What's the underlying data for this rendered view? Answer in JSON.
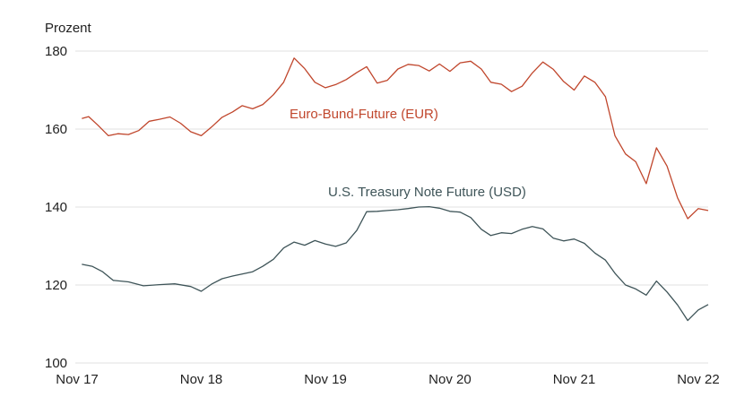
{
  "chart_data": {
    "type": "line",
    "ylabel": "Prozent",
    "ylim": [
      100,
      180
    ],
    "yticks": [
      100,
      120,
      140,
      160,
      180
    ],
    "xlim": [
      "2017-11-01",
      "2022-11-30"
    ],
    "xticks": [
      {
        "date": "2017-11-01",
        "label": "Nov 17"
      },
      {
        "date": "2018-11-01",
        "label": "Nov 18"
      },
      {
        "date": "2019-11-01",
        "label": "Nov 19"
      },
      {
        "date": "2020-11-01",
        "label": "Nov 20"
      },
      {
        "date": "2021-11-01",
        "label": "Nov 21"
      },
      {
        "date": "2022-11-01",
        "label": "Nov 22"
      }
    ],
    "grid": "horizontal",
    "series": [
      {
        "name": "Euro-Bund-Future (EUR)",
        "color": "#c0462c",
        "points": [
          [
            "2017-11-15",
            162.7
          ],
          [
            "2017-12-05",
            163.2
          ],
          [
            "2018-01-01",
            161.0
          ],
          [
            "2018-02-01",
            158.3
          ],
          [
            "2018-03-01",
            158.8
          ],
          [
            "2018-04-01",
            158.6
          ],
          [
            "2018-05-01",
            159.6
          ],
          [
            "2018-06-01",
            162.0
          ],
          [
            "2018-07-01",
            162.5
          ],
          [
            "2018-08-01",
            163.1
          ],
          [
            "2018-09-01",
            161.5
          ],
          [
            "2018-10-01",
            159.3
          ],
          [
            "2018-11-01",
            158.3
          ],
          [
            "2018-12-01",
            160.5
          ],
          [
            "2019-01-01",
            163.0
          ],
          [
            "2019-02-01",
            164.4
          ],
          [
            "2019-03-01",
            166.0
          ],
          [
            "2019-04-01",
            165.2
          ],
          [
            "2019-05-01",
            166.3
          ],
          [
            "2019-06-01",
            168.8
          ],
          [
            "2019-07-01",
            172.0
          ],
          [
            "2019-08-01",
            178.2
          ],
          [
            "2019-09-01",
            175.5
          ],
          [
            "2019-10-01",
            172.0
          ],
          [
            "2019-11-01",
            170.6
          ],
          [
            "2019-12-01",
            171.4
          ],
          [
            "2020-01-01",
            172.7
          ],
          [
            "2020-02-01",
            174.5
          ],
          [
            "2020-03-01",
            176.0
          ],
          [
            "2020-04-01",
            171.8
          ],
          [
            "2020-05-01",
            172.5
          ],
          [
            "2020-06-01",
            175.4
          ],
          [
            "2020-07-01",
            176.6
          ],
          [
            "2020-08-01",
            176.3
          ],
          [
            "2020-09-01",
            174.9
          ],
          [
            "2020-10-01",
            176.7
          ],
          [
            "2020-11-01",
            174.8
          ],
          [
            "2020-12-01",
            177.0
          ],
          [
            "2021-01-01",
            177.4
          ],
          [
            "2021-02-01",
            175.4
          ],
          [
            "2021-03-01",
            172.0
          ],
          [
            "2021-04-01",
            171.5
          ],
          [
            "2021-05-01",
            169.6
          ],
          [
            "2021-06-01",
            171.0
          ],
          [
            "2021-07-01",
            174.4
          ],
          [
            "2021-08-01",
            177.2
          ],
          [
            "2021-09-01",
            175.3
          ],
          [
            "2021-10-01",
            172.2
          ],
          [
            "2021-11-01",
            170.0
          ],
          [
            "2021-12-01",
            173.6
          ],
          [
            "2022-01-01",
            172.0
          ],
          [
            "2022-02-01",
            168.3
          ],
          [
            "2022-03-01",
            158.3
          ],
          [
            "2022-04-01",
            153.6
          ],
          [
            "2022-05-01",
            151.6
          ],
          [
            "2022-06-01",
            146.0
          ],
          [
            "2022-07-01",
            155.2
          ],
          [
            "2022-08-01",
            150.5
          ],
          [
            "2022-09-01",
            142.4
          ],
          [
            "2022-10-01",
            137.0
          ],
          [
            "2022-11-01",
            139.6
          ],
          [
            "2022-11-30",
            139.1
          ]
        ]
      },
      {
        "name": "U.S. Treasury Note Future (USD)",
        "color": "#3e5458",
        "points": [
          [
            "2017-11-15",
            125.3
          ],
          [
            "2017-12-15",
            124.8
          ],
          [
            "2018-01-15",
            123.4
          ],
          [
            "2018-02-15",
            121.2
          ],
          [
            "2018-04-01",
            120.8
          ],
          [
            "2018-05-15",
            119.8
          ],
          [
            "2018-07-01",
            120.1
          ],
          [
            "2018-08-15",
            120.3
          ],
          [
            "2018-10-01",
            119.6
          ],
          [
            "2018-11-01",
            118.4
          ],
          [
            "2018-12-01",
            120.2
          ],
          [
            "2019-01-01",
            121.6
          ],
          [
            "2019-02-01",
            122.3
          ],
          [
            "2019-03-01",
            122.8
          ],
          [
            "2019-04-01",
            123.4
          ],
          [
            "2019-05-01",
            124.8
          ],
          [
            "2019-06-01",
            126.6
          ],
          [
            "2019-07-01",
            129.5
          ],
          [
            "2019-08-01",
            131.0
          ],
          [
            "2019-09-01",
            130.2
          ],
          [
            "2019-10-01",
            131.4
          ],
          [
            "2019-11-01",
            130.5
          ],
          [
            "2019-12-01",
            129.9
          ],
          [
            "2020-01-01",
            130.8
          ],
          [
            "2020-02-01",
            134.0
          ],
          [
            "2020-03-01",
            138.8
          ],
          [
            "2020-04-01",
            138.9
          ],
          [
            "2020-05-01",
            139.1
          ],
          [
            "2020-06-01",
            139.3
          ],
          [
            "2020-07-01",
            139.6
          ],
          [
            "2020-08-01",
            140.0
          ],
          [
            "2020-09-01",
            140.1
          ],
          [
            "2020-10-01",
            139.7
          ],
          [
            "2020-11-01",
            138.9
          ],
          [
            "2020-12-01",
            138.7
          ],
          [
            "2021-01-01",
            137.3
          ],
          [
            "2021-02-01",
            134.3
          ],
          [
            "2021-03-01",
            132.7
          ],
          [
            "2021-04-01",
            133.4
          ],
          [
            "2021-05-01",
            133.2
          ],
          [
            "2021-06-01",
            134.3
          ],
          [
            "2021-07-01",
            135.0
          ],
          [
            "2021-08-01",
            134.4
          ],
          [
            "2021-09-01",
            132.0
          ],
          [
            "2021-10-01",
            131.3
          ],
          [
            "2021-11-01",
            131.8
          ],
          [
            "2021-12-01",
            130.7
          ],
          [
            "2022-01-01",
            128.2
          ],
          [
            "2022-02-01",
            126.4
          ],
          [
            "2022-03-01",
            123.0
          ],
          [
            "2022-04-01",
            120.0
          ],
          [
            "2022-05-01",
            119.0
          ],
          [
            "2022-06-01",
            117.4
          ],
          [
            "2022-07-01",
            121.0
          ],
          [
            "2022-08-01",
            118.2
          ],
          [
            "2022-09-01",
            114.9
          ],
          [
            "2022-10-01",
            110.9
          ],
          [
            "2022-11-01",
            113.6
          ],
          [
            "2022-11-30",
            115.0
          ]
        ]
      }
    ]
  }
}
